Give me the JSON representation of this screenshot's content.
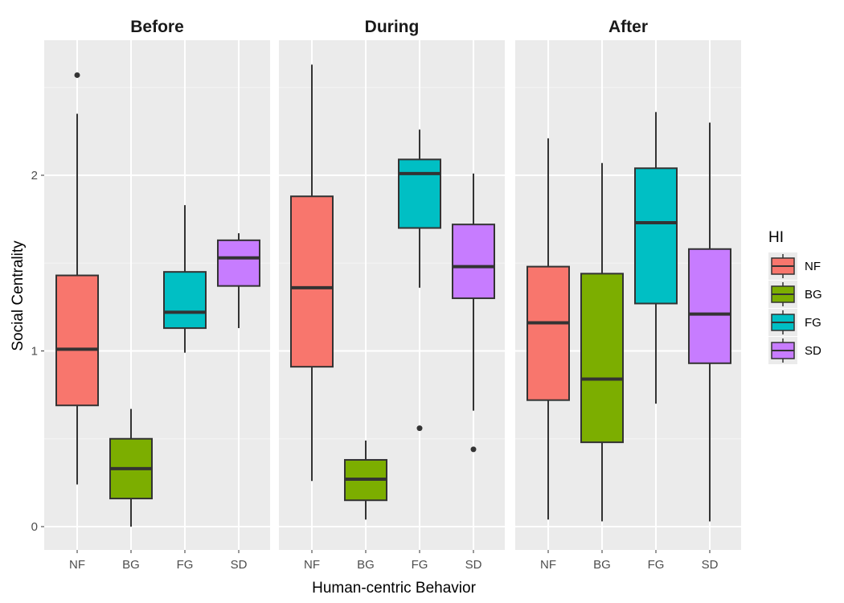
{
  "chart_data": {
    "type": "boxplot",
    "facets": [
      "Before",
      "During",
      "After"
    ],
    "categories": [
      "NF",
      "BG",
      "FG",
      "SD"
    ],
    "xlabel": "Human-centric Behavior",
    "ylabel": "Social Centrality",
    "ylim": [
      -0.12,
      2.72
    ],
    "yticks": [
      0,
      1,
      2
    ],
    "ytick_labels": [
      "0",
      "1",
      "2"
    ],
    "legend": {
      "title": "HI",
      "position": "right",
      "items": [
        {
          "label": "NF",
          "color": "#F8766D"
        },
        {
          "label": "BG",
          "color": "#7CAE00"
        },
        {
          "label": "FG",
          "color": "#00BFC4"
        },
        {
          "label": "SD",
          "color": "#C77CFF"
        }
      ]
    },
    "colors": {
      "NF": "#F8766D",
      "BG": "#7CAE00",
      "FG": "#00BFC4",
      "SD": "#C77CFF"
    },
    "panel_background": "#EBEBEB",
    "data": {
      "Before": {
        "NF": {
          "min": 0.24,
          "q1": 0.69,
          "median": 1.01,
          "q3": 1.43,
          "max": 2.35,
          "outliers": [
            2.57
          ]
        },
        "BG": {
          "min": 0.0,
          "q1": 0.16,
          "median": 0.33,
          "q3": 0.5,
          "max": 0.67,
          "outliers": []
        },
        "FG": {
          "min": 0.99,
          "q1": 1.13,
          "median": 1.22,
          "q3": 1.45,
          "max": 1.83,
          "outliers": []
        },
        "SD": {
          "min": 1.13,
          "q1": 1.37,
          "median": 1.53,
          "q3": 1.63,
          "max": 1.67,
          "outliers": []
        }
      },
      "During": {
        "NF": {
          "min": 0.26,
          "q1": 0.91,
          "median": 1.36,
          "q3": 1.88,
          "max": 2.63,
          "outliers": []
        },
        "BG": {
          "min": 0.04,
          "q1": 0.15,
          "median": 0.27,
          "q3": 0.38,
          "max": 0.49,
          "outliers": []
        },
        "FG": {
          "min": 1.36,
          "q1": 1.7,
          "median": 2.01,
          "q3": 2.09,
          "max": 2.26,
          "outliers": [
            0.56
          ]
        },
        "SD": {
          "min": 0.66,
          "q1": 1.3,
          "median": 1.48,
          "q3": 1.72,
          "max": 2.01,
          "outliers": [
            0.44
          ]
        }
      },
      "After": {
        "NF": {
          "min": 0.04,
          "q1": 0.72,
          "median": 1.16,
          "q3": 1.48,
          "max": 2.21,
          "outliers": []
        },
        "BG": {
          "min": 0.03,
          "q1": 0.48,
          "median": 0.84,
          "q3": 1.44,
          "max": 2.07,
          "outliers": []
        },
        "FG": {
          "min": 0.7,
          "q1": 1.27,
          "median": 1.73,
          "q3": 2.04,
          "max": 2.36,
          "outliers": []
        },
        "SD": {
          "min": 0.03,
          "q1": 0.93,
          "median": 1.21,
          "q3": 1.58,
          "max": 2.3,
          "outliers": []
        }
      }
    }
  }
}
